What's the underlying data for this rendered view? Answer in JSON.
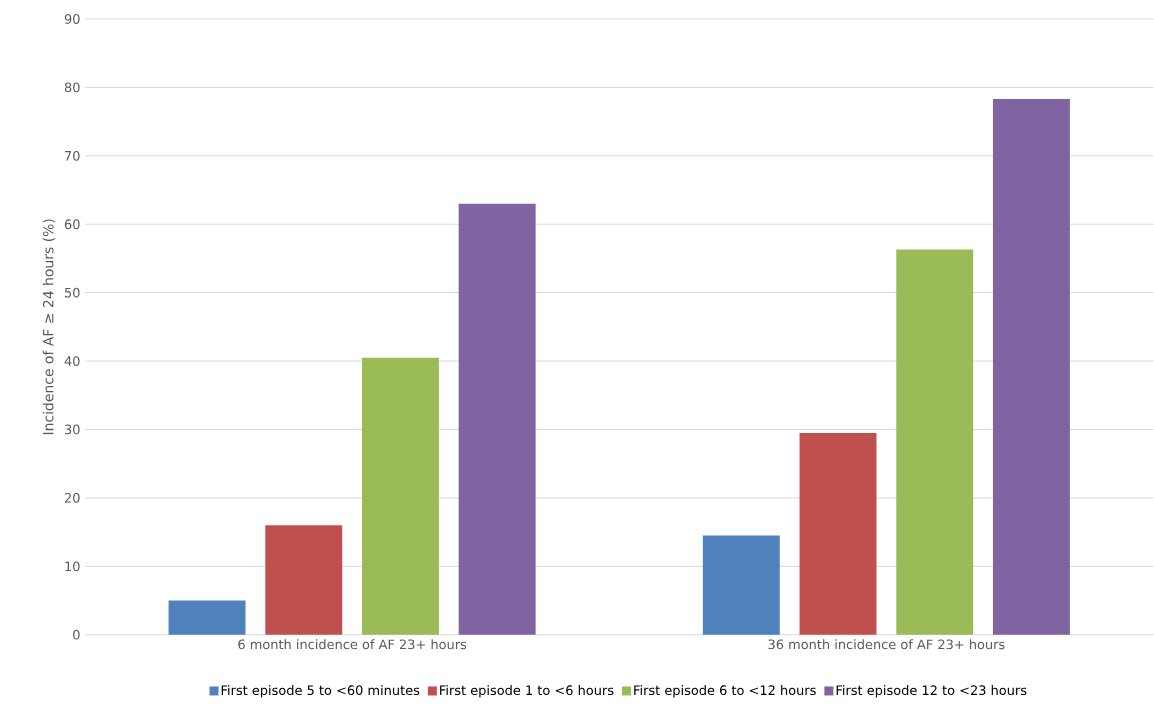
{
  "chart_data": {
    "type": "bar",
    "ylabel": "Incidence of AF ≥ 24 hours (%)",
    "categories": [
      "6 month incidence of AF 23+ hours",
      "36 month incidence of AF 23+ hours"
    ],
    "series": [
      {
        "name": "First episode 5 to <60 minutes",
        "color": "#4f81bd",
        "values": [
          5,
          14.5
        ]
      },
      {
        "name": "First episode 1 to <6 hours",
        "color": "#c0504d",
        "values": [
          16,
          29.5
        ]
      },
      {
        "name": "First episode 6 to <12 hours",
        "color": "#9bbb59",
        "values": [
          40.5,
          56.3
        ]
      },
      {
        "name": "First episode 12 to <23 hours",
        "color": "#8064a2",
        "values": [
          63,
          78.3
        ]
      }
    ],
    "ylim": [
      0,
      90
    ],
    "yticks": [
      0,
      10,
      20,
      30,
      40,
      50,
      60,
      70,
      80,
      90
    ],
    "grid": "y",
    "legend": "bottom"
  }
}
